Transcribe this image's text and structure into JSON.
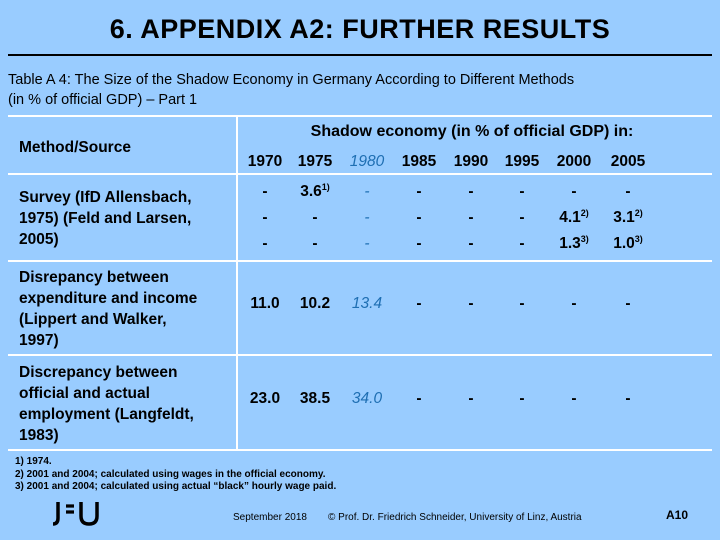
{
  "slide": {
    "title": "6. APPENDIX A2: FURTHER RESULTS",
    "caption_line1": "Table A 4: The Size of the Shadow Economy in Germany According to Different Methods",
    "caption_line2": "(in % of official GDP) – Part 1"
  },
  "table": {
    "method_header": "Method/Source",
    "group_header": "Shadow economy (in % of official GDP) in:",
    "years": [
      "1970",
      "1975",
      "1980",
      "1985",
      "1990",
      "1995",
      "2000",
      "2005"
    ],
    "highlight_column": 2,
    "groups": [
      {
        "method_lines": [
          "Survey (IfD Allensbach,",
          "1975) (Feld and Larsen,",
          "2005)"
        ],
        "rows": [
          [
            {
              "v": "-"
            },
            {
              "v": "3.6",
              "s": "1)"
            },
            {
              "v": "-"
            },
            {
              "v": "-"
            },
            {
              "v": "-"
            },
            {
              "v": "-"
            },
            {
              "v": "-"
            },
            {
              "v": "-"
            }
          ],
          [
            {
              "v": "-"
            },
            {
              "v": "-"
            },
            {
              "v": "-"
            },
            {
              "v": "-"
            },
            {
              "v": "-"
            },
            {
              "v": "-"
            },
            {
              "v": "4.1",
              "s": "2)"
            },
            {
              "v": "3.1",
              "s": "2)"
            }
          ],
          [
            {
              "v": "-"
            },
            {
              "v": "-"
            },
            {
              "v": "-"
            },
            {
              "v": "-"
            },
            {
              "v": "-"
            },
            {
              "v": "-"
            },
            {
              "v": "1.3",
              "s": "3)"
            },
            {
              "v": "1.0",
              "s": "3)"
            }
          ]
        ]
      },
      {
        "method_lines": [
          "Disrepancy between",
          "expenditure and income",
          "(Lippert and Walker,",
          "1997)"
        ],
        "rows": [
          [
            {
              "v": "11.0"
            },
            {
              "v": "10.2"
            },
            {
              "v": "13.4"
            },
            {
              "v": "-"
            },
            {
              "v": "-"
            },
            {
              "v": "-"
            },
            {
              "v": "-"
            },
            {
              "v": "-"
            }
          ]
        ]
      },
      {
        "method_lines": [
          "Discrepancy between",
          "official and actual",
          "employment (Langfeldt,",
          "1983)"
        ],
        "rows": [
          [
            {
              "v": "23.0"
            },
            {
              "v": "38.5"
            },
            {
              "v": "34.0"
            },
            {
              "v": "-"
            },
            {
              "v": "-"
            },
            {
              "v": "-"
            },
            {
              "v": "-"
            },
            {
              "v": "-"
            }
          ]
        ]
      }
    ]
  },
  "notes": [
    "1)  1974.",
    "2)  2001 and 2004; calculated using wages in the official economy.",
    "3)  2001 and 2004; calculated using actual “black” hourly wage paid."
  ],
  "footer": {
    "date": "September 2018",
    "credit": "© Prof. Dr. Friedrich Schneider, University of Linz, Austria",
    "page": "A10"
  },
  "colors": {
    "background": "#99ccff",
    "highlight": "#1f6fb3",
    "rules": "#ffffff"
  },
  "logo_icon": "jku-logo"
}
